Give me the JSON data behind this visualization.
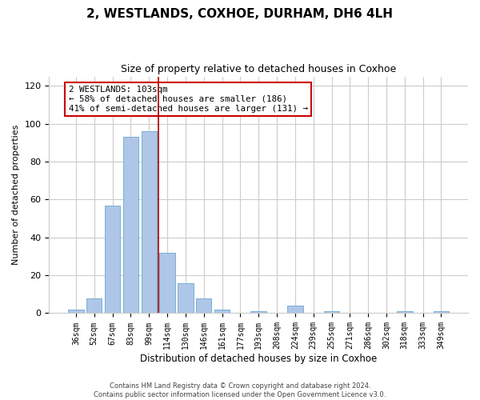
{
  "title": "2, WESTLANDS, COXHOE, DURHAM, DH6 4LH",
  "subtitle": "Size of property relative to detached houses in Coxhoe",
  "xlabel": "Distribution of detached houses by size in Coxhoe",
  "ylabel": "Number of detached properties",
  "bar_labels": [
    "36sqm",
    "52sqm",
    "67sqm",
    "83sqm",
    "99sqm",
    "114sqm",
    "130sqm",
    "146sqm",
    "161sqm",
    "177sqm",
    "193sqm",
    "208sqm",
    "224sqm",
    "239sqm",
    "255sqm",
    "271sqm",
    "286sqm",
    "302sqm",
    "318sqm",
    "333sqm",
    "349sqm"
  ],
  "bar_values": [
    2,
    8,
    57,
    93,
    96,
    32,
    16,
    8,
    2,
    0,
    1,
    0,
    4,
    0,
    1,
    0,
    0,
    0,
    1,
    0,
    1
  ],
  "bar_color": "#aec6e8",
  "bar_edge_color": "#7aafd4",
  "vline_x_index": 4.5,
  "vline_color": "#aa0000",
  "ylim": [
    0,
    125
  ],
  "yticks": [
    0,
    20,
    40,
    60,
    80,
    100,
    120
  ],
  "annotation_box_text": "2 WESTLANDS: 103sqm\n← 58% of detached houses are smaller (186)\n41% of semi-detached houses are larger (131) →",
  "annotation_box_color": "#cc0000",
  "annotation_box_facecolor": "white",
  "footer_line1": "Contains HM Land Registry data © Crown copyright and database right 2024.",
  "footer_line2": "Contains public sector information licensed under the Open Government Licence v3.0.",
  "background_color": "#ffffff",
  "grid_color": "#cccccc",
  "title_fontsize": 11,
  "subtitle_fontsize": 9,
  "ylabel_fontsize": 8,
  "xlabel_fontsize": 8.5,
  "tick_fontsize": 7,
  "ann_fontsize": 7.8,
  "footer_fontsize": 6
}
